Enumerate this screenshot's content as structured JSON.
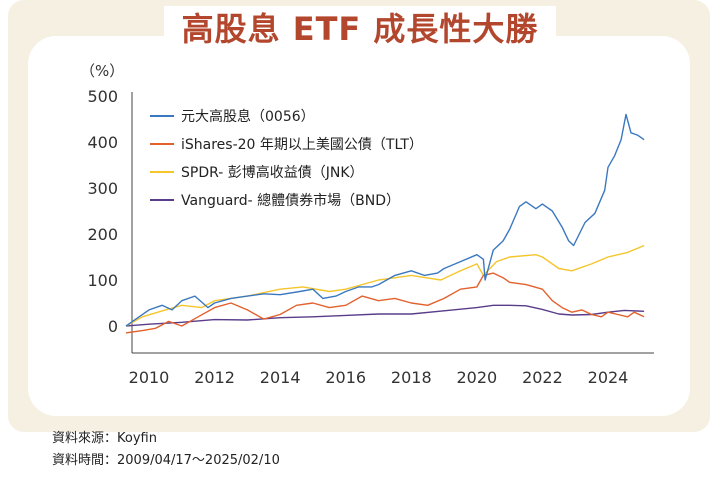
{
  "title": "高股息 ETF 成長性大勝",
  "footer": {
    "source": "資料來源：Koyfin",
    "period": "資料時間：2009/04/17～2025/02/10"
  },
  "chart_data": {
    "type": "line",
    "title": "高股息 ETF 成長性大勝",
    "ylabel": "（%）",
    "xlabel": "",
    "ylim": [
      -20,
      500
    ],
    "xlim": [
      2009.3,
      2025.1
    ],
    "y_ticks": [
      0,
      100,
      200,
      300,
      400,
      500
    ],
    "x_ticks": [
      2010,
      2012,
      2014,
      2016,
      2018,
      2020,
      2022,
      2024
    ],
    "grid": false,
    "legend_position": "top-left",
    "series": [
      {
        "name": "元大高股息（0056）",
        "color": "#3a78c0",
        "x": [
          2009.3,
          2009.6,
          2010.0,
          2010.4,
          2010.7,
          2011.0,
          2011.4,
          2011.8,
          2012.0,
          2012.5,
          2013.0,
          2013.5,
          2014.0,
          2014.6,
          2015.0,
          2015.3,
          2015.7,
          2016.0,
          2016.4,
          2016.8,
          2017.0,
          2017.5,
          2018.0,
          2018.4,
          2018.8,
          2019.0,
          2019.5,
          2020.0,
          2020.2,
          2020.25,
          2020.5,
          2020.8,
          2021.0,
          2021.3,
          2021.5,
          2021.8,
          2022.0,
          2022.3,
          2022.6,
          2022.8,
          2022.95,
          2023.3,
          2023.6,
          2023.9,
          2024.0,
          2024.2,
          2024.4,
          2024.55,
          2024.7,
          2024.9,
          2025.1
        ],
        "values": [
          0,
          15,
          35,
          45,
          35,
          55,
          65,
          40,
          50,
          60,
          65,
          70,
          68,
          75,
          80,
          60,
          65,
          75,
          85,
          85,
          90,
          110,
          120,
          110,
          115,
          125,
          140,
          155,
          145,
          100,
          165,
          185,
          210,
          260,
          270,
          255,
          265,
          250,
          215,
          185,
          175,
          225,
          245,
          295,
          345,
          370,
          405,
          460,
          420,
          415,
          405
        ]
      },
      {
        "name": "iShares-20 年期以上美國公債（TLT）",
        "color": "#e2612d",
        "x": [
          2009.3,
          2009.8,
          2010.2,
          2010.6,
          2011.0,
          2011.5,
          2012.0,
          2012.5,
          2013.0,
          2013.5,
          2014.0,
          2014.5,
          2015.0,
          2015.5,
          2016.0,
          2016.5,
          2017.0,
          2017.5,
          2018.0,
          2018.5,
          2019.0,
          2019.5,
          2020.0,
          2020.2,
          2020.5,
          2020.8,
          2021.0,
          2021.5,
          2022.0,
          2022.3,
          2022.6,
          2022.9,
          2023.2,
          2023.5,
          2023.8,
          2024.0,
          2024.3,
          2024.6,
          2024.8,
          2025.1
        ],
        "values": [
          -15,
          -10,
          -5,
          10,
          0,
          20,
          40,
          50,
          35,
          15,
          25,
          45,
          50,
          40,
          45,
          65,
          55,
          60,
          50,
          45,
          60,
          80,
          85,
          110,
          115,
          105,
          95,
          90,
          80,
          55,
          40,
          30,
          35,
          25,
          20,
          30,
          25,
          20,
          30,
          20
        ]
      },
      {
        "name": "SPDR- 彭博高收益債（JNK）",
        "color": "#f5c52c",
        "x": [
          2009.3,
          2009.8,
          2010.5,
          2011.0,
          2011.6,
          2012.0,
          2013.0,
          2014.0,
          2014.7,
          2015.5,
          2016.0,
          2017.0,
          2018.0,
          2018.9,
          2019.5,
          2020.0,
          2020.2,
          2020.6,
          2021.0,
          2021.8,
          2022.0,
          2022.5,
          2022.9,
          2023.5,
          2024.0,
          2024.6,
          2025.1
        ],
        "values": [
          0,
          20,
          35,
          45,
          40,
          55,
          65,
          80,
          85,
          75,
          80,
          100,
          110,
          100,
          120,
          135,
          110,
          140,
          150,
          155,
          150,
          125,
          120,
          135,
          150,
          160,
          175
        ]
      },
      {
        "name": "Vanguard- 總體債券市場（BND）",
        "color": "#5a3d8a",
        "x": [
          2009.3,
          2010.0,
          2011.0,
          2012.0,
          2013.0,
          2014.0,
          2015.0,
          2016.0,
          2017.0,
          2018.0,
          2019.0,
          2020.0,
          2020.5,
          2021.0,
          2021.5,
          2022.0,
          2022.5,
          2022.9,
          2023.5,
          2024.0,
          2024.5,
          2025.1
        ],
        "values": [
          0,
          4,
          8,
          14,
          13,
          18,
          20,
          23,
          26,
          26,
          33,
          40,
          45,
          45,
          44,
          36,
          26,
          24,
          25,
          30,
          34,
          32
        ]
      }
    ]
  }
}
